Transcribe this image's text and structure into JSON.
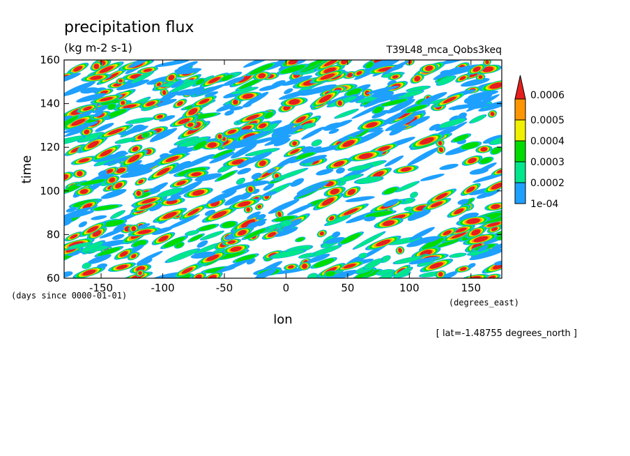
{
  "chart_data": {
    "type": "heatmap",
    "title": "precipitation flux",
    "units": "(kg m-2 s-1)",
    "dataset": "T39L48_mca_Qobs3keq",
    "xlabel": "lon",
    "ylabel": "time",
    "x_units": "(degrees_east)",
    "y_units": "(days since 0000-01-01)",
    "footer": "[ lat=-1.48755 degrees_north ]",
    "xlim": [
      -180,
      175
    ],
    "ylim": [
      60,
      160
    ],
    "x_ticks": [
      -150,
      -100,
      -50,
      0,
      50,
      100,
      150
    ],
    "x_tick_labels": [
      "-150",
      "-100",
      "-50",
      "0",
      "50",
      "100",
      "150"
    ],
    "y_ticks": [
      60,
      80,
      100,
      120,
      140,
      160
    ],
    "y_tick_labels": [
      "60",
      "80",
      "100",
      "120",
      "140",
      "160"
    ],
    "colorbar": {
      "levels": [
        0.0001,
        0.0002,
        0.0003,
        0.0004,
        0.0005,
        0.0006
      ],
      "labels": [
        "1e-04",
        "0.0002",
        "0.0003",
        "0.0004",
        "0.0005",
        "0.0006"
      ],
      "colors": [
        "#1ea0ff",
        "#00e68c",
        "#00dc00",
        "#f0f000",
        "#ff9600",
        "#e61e1e"
      ],
      "extend": "max"
    },
    "grid": false
  }
}
